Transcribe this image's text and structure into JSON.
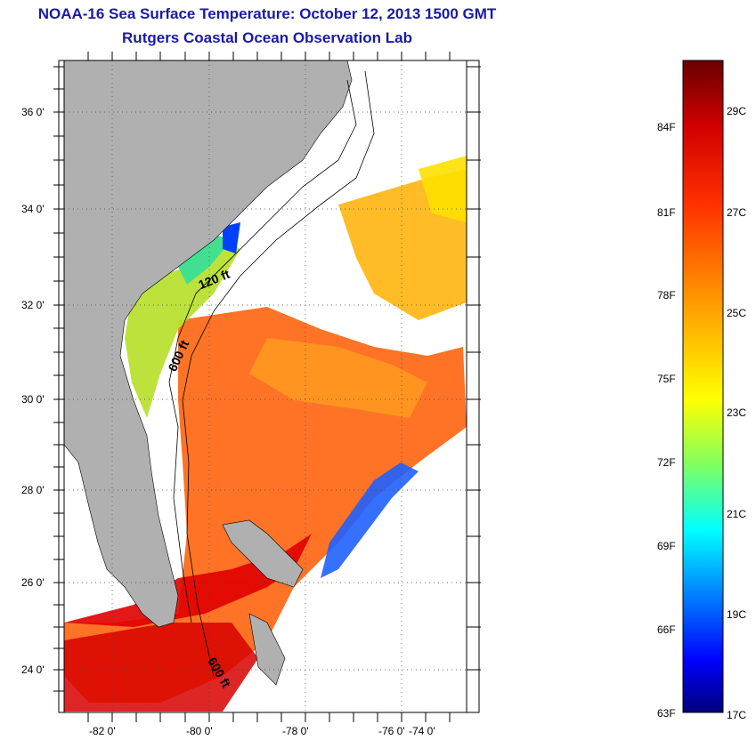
{
  "title": "NOAA-16 Sea Surface Temperature:  October 12, 2013 1500 GMT",
  "subtitle": "Rutgers Coastal Ocean Observation Lab",
  "map": {
    "lat_labels": [
      "36 0'",
      "34 0'",
      "32 0'",
      "30 0'",
      "28 0'",
      "26 0'",
      "24 0'"
    ],
    "lon_labels": [
      "-82 0'",
      "-80 0'",
      "-78 0'",
      "-76 0'",
      "-74 0'"
    ],
    "contour_labels": [
      "120 ft",
      "600 ft",
      "600 ft"
    ],
    "land_color": "#b0b0b0",
    "cloud_color": "#ffffff"
  },
  "colorbar": {
    "fahrenheit_labels": [
      "84F",
      "81F",
      "78F",
      "75F",
      "72F",
      "69F",
      "66F",
      "63F"
    ],
    "celsius_labels": [
      "29C",
      "27C",
      "25C",
      "23C",
      "21C",
      "19C",
      "17C"
    ],
    "colors_top_to_bottom": [
      "#8b0000",
      "#ff0000",
      "#ff8c00",
      "#ffff00",
      "#00ffff",
      "#0000ff",
      "#00008b"
    ]
  }
}
